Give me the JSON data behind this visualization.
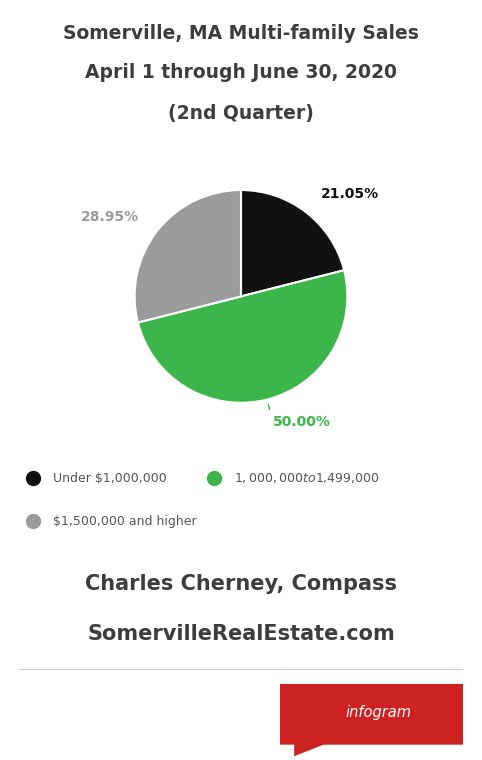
{
  "title_line1": "Somerville, MA Multi-family Sales",
  "title_line2": "April 1 through June 30, 2020",
  "title_line3": "(2nd Quarter)",
  "slices": [
    21.05,
    50.0,
    28.95
  ],
  "slice_colors": [
    "#111111",
    "#3cb54a",
    "#9b9b9b"
  ],
  "slice_labels": [
    "21.05%",
    "50.00%",
    "28.95%"
  ],
  "label_colors": [
    "#111111",
    "#3cb54a",
    "#9b9b9b"
  ],
  "legend_labels": [
    "Under $1,000,000",
    "$1,000,000 to $1,499,000",
    "$1,500,000 and higher"
  ],
  "legend_colors": [
    "#111111",
    "#3cb54a",
    "#9b9b9b"
  ],
  "author_line1": "Charles Cherney, Compass",
  "author_line2": "SomervilleRealEstate.com",
  "background_color": "#ffffff",
  "title_color": "#3d3d3d",
  "author_color": "#3d3d3d",
  "infogram_bg": "#cc2222",
  "infogram_text": "infogram"
}
